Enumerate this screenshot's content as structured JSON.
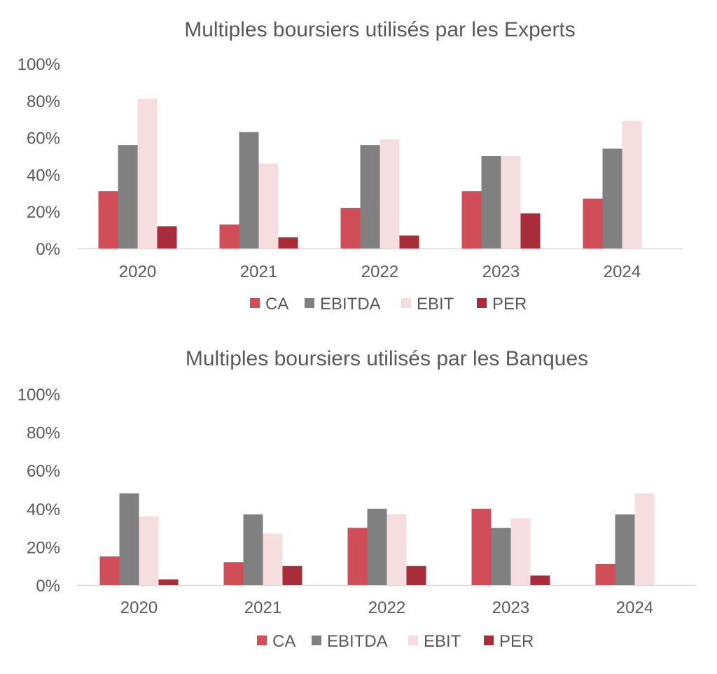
{
  "colors": {
    "CA": "#cf4e58",
    "EBITDA": "#808080",
    "EBIT": "#f6dde0",
    "PER": "#a82c3a",
    "axis": "#d9d9d9",
    "text": "#595959"
  },
  "chart_data": [
    {
      "type": "bar",
      "title": "Multiples boursiers utilisés par les Experts",
      "categories": [
        "2020",
        "2021",
        "2022",
        "2023",
        "2024"
      ],
      "yticks": [
        "0%",
        "20%",
        "40%",
        "60%",
        "80%",
        "100%"
      ],
      "ylim": [
        0,
        100
      ],
      "legend_position": "bottom",
      "series": [
        {
          "name": "CA",
          "values": [
            31,
            13,
            22,
            31,
            27
          ]
        },
        {
          "name": "EBITDA",
          "values": [
            56,
            63,
            56,
            50,
            54
          ]
        },
        {
          "name": "EBIT",
          "values": [
            81,
            46,
            59,
            50,
            69
          ]
        },
        {
          "name": "PER",
          "values": [
            12,
            6,
            7,
            19,
            0
          ]
        }
      ]
    },
    {
      "type": "bar",
      "title": "Multiples boursiers utilisés par les Banques",
      "categories": [
        "2020",
        "2021",
        "2022",
        "2023",
        "2024"
      ],
      "yticks": [
        "0%",
        "20%",
        "40%",
        "60%",
        "80%",
        "100%"
      ],
      "ylim": [
        0,
        100
      ],
      "legend_position": "bottom",
      "series": [
        {
          "name": "CA",
          "values": [
            15,
            12,
            30,
            40,
            11
          ]
        },
        {
          "name": "EBITDA",
          "values": [
            48,
            37,
            40,
            30,
            37
          ]
        },
        {
          "name": "EBIT",
          "values": [
            36,
            27,
            37,
            35,
            48
          ]
        },
        {
          "name": "PER",
          "values": [
            3,
            10,
            10,
            5,
            0
          ]
        }
      ]
    }
  ]
}
